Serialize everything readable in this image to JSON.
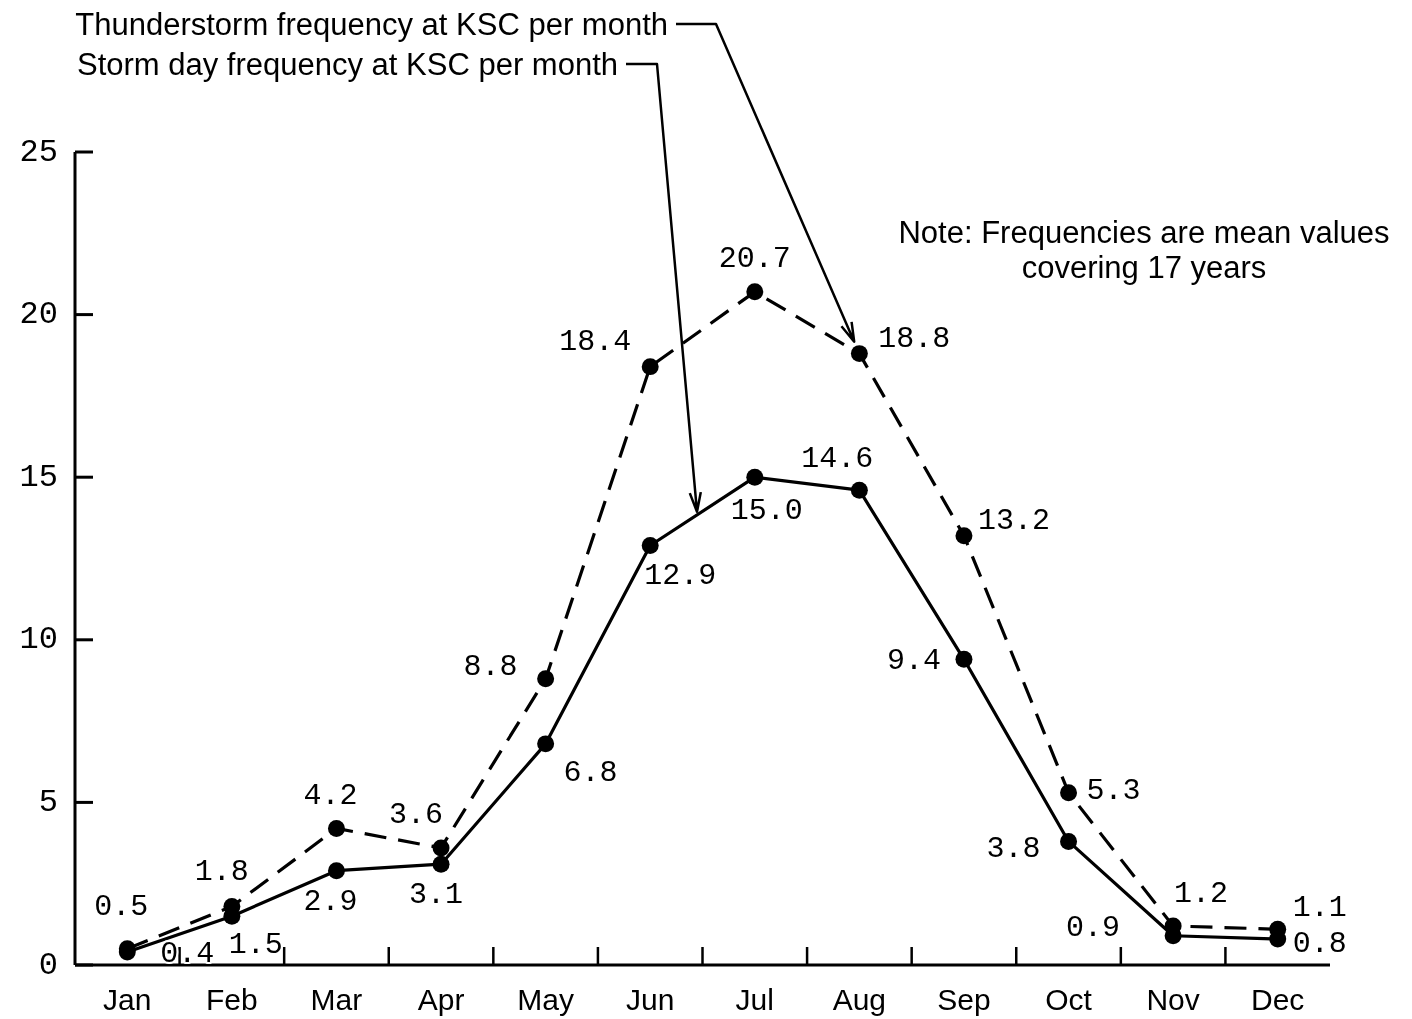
{
  "chart_data": {
    "type": "line",
    "categories": [
      "Jan",
      "Feb",
      "Mar",
      "Apr",
      "May",
      "Jun",
      "Jul",
      "Aug",
      "Sep",
      "Oct",
      "Nov",
      "Dec"
    ],
    "series": [
      {
        "name": "Thunderstorm frequency at KSC per month",
        "color": "#000000",
        "line_style": "dashed",
        "values": [
          0.5,
          1.8,
          4.2,
          3.6,
          8.8,
          18.4,
          20.7,
          18.8,
          13.2,
          5.3,
          1.2,
          1.1
        ],
        "value_labels": [
          "0.5",
          "1.8",
          "4.2",
          "3.6",
          "8.8",
          "18.4",
          "20.7",
          "18.8",
          "13.2",
          "5.3",
          "1.2",
          "1.1"
        ]
      },
      {
        "name": "Storm day frequency at KSC per month",
        "color": "#000000",
        "line_style": "solid",
        "values": [
          0.4,
          1.5,
          2.9,
          3.1,
          6.8,
          12.9,
          15.0,
          14.6,
          9.4,
          3.8,
          0.9,
          0.8
        ],
        "value_labels": [
          "0.4",
          "1.5",
          "2.9",
          "3.1",
          "6.8",
          "12.9",
          "15.0",
          "14.6",
          "9.4",
          "3.8",
          "0.9",
          "0.8"
        ]
      }
    ],
    "ylim": [
      0,
      25
    ],
    "yticks": [
      0,
      5,
      10,
      15,
      20,
      25
    ],
    "marker": "circle",
    "annotations": [
      "Note: Frequencies are mean values\ncovering 17 years"
    ]
  }
}
